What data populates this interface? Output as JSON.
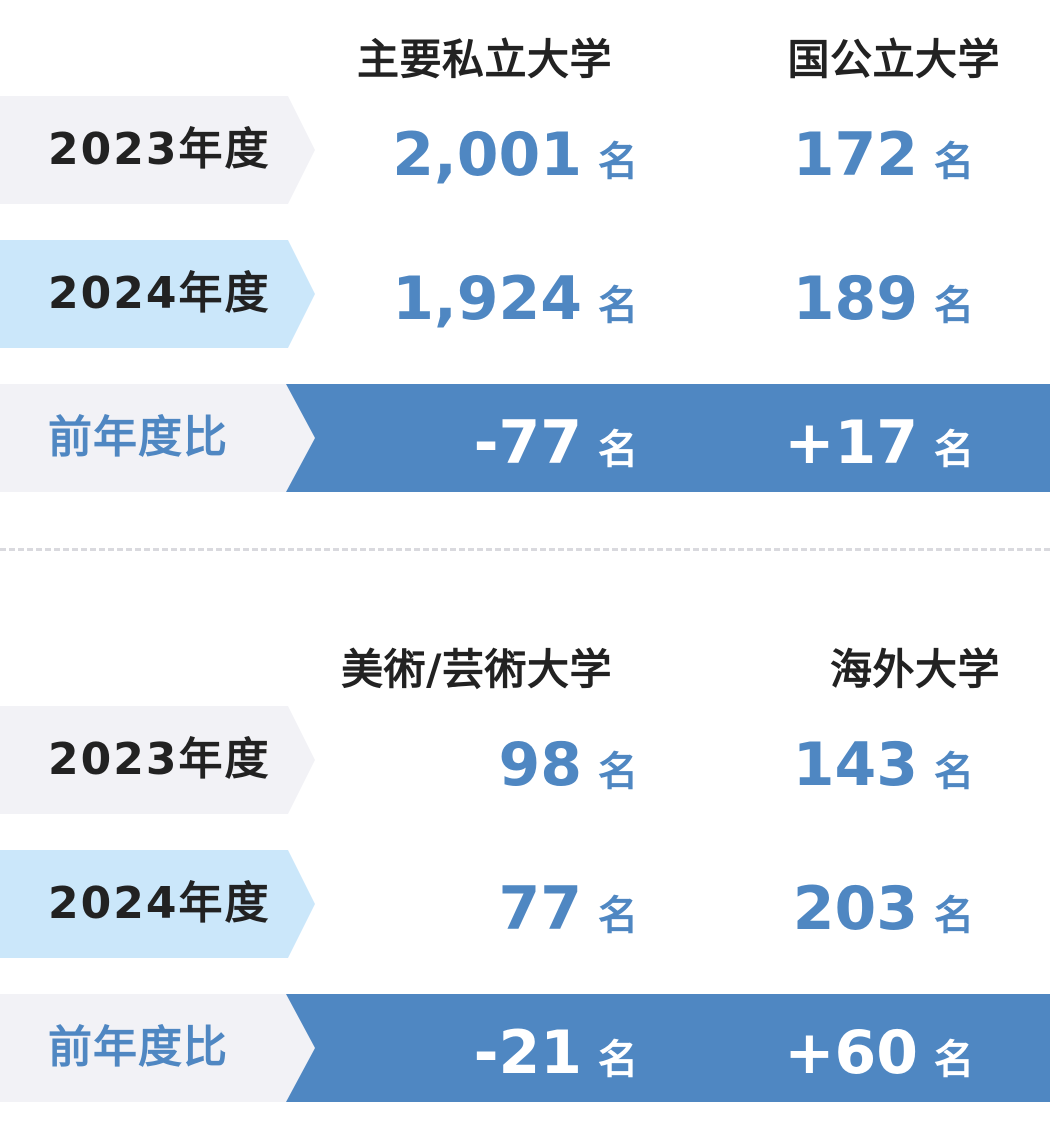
{
  "sections": [
    {
      "headers": [
        "主要私立大学",
        "国公立大学"
      ],
      "rows": [
        {
          "label": "2023年度",
          "values": [
            "2,001",
            "172"
          ]
        },
        {
          "label": "2024年度",
          "values": [
            "1,924",
            "189"
          ]
        },
        {
          "label": "前年度比",
          "values": [
            "-77",
            "+17"
          ]
        }
      ]
    },
    {
      "headers": [
        "美術/芸術大学",
        "海外大学"
      ],
      "rows": [
        {
          "label": "2023年度",
          "values": [
            "98",
            "143"
          ]
        },
        {
          "label": "2024年度",
          "values": [
            "77",
            "203"
          ]
        },
        {
          "label": "前年度比",
          "values": [
            "-21",
            "+60"
          ]
        }
      ]
    }
  ],
  "unit": "名",
  "colors": {
    "accent": "#4f87c2",
    "row_label_bg": "#f2f2f6",
    "row_label_bg_highlight": "#cbe7fa",
    "text_dark": "#222222"
  }
}
